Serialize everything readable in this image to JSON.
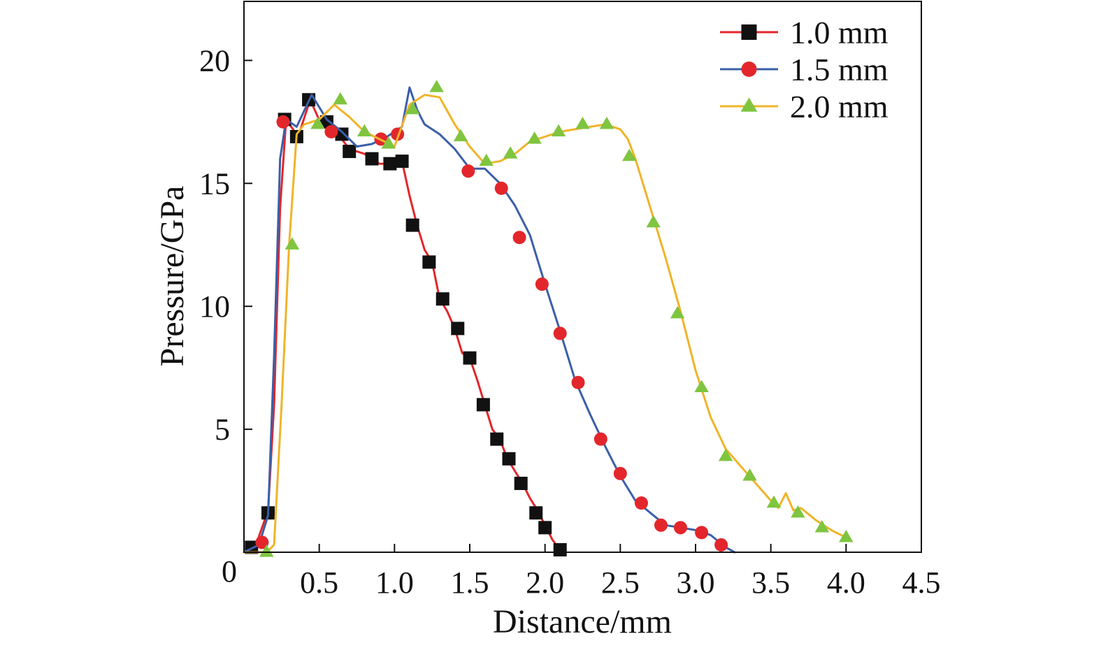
{
  "chart_data": {
    "type": "line",
    "xlabel": "Distance/mm",
    "ylabel": "Pressure/GPa",
    "xlim": [
      0,
      4.5
    ],
    "ylim": [
      0,
      22.4
    ],
    "xticks": [
      0.5,
      1.0,
      1.5,
      2.0,
      2.5,
      3.0,
      3.5,
      4.0,
      4.5
    ],
    "xtick_labels": [
      "0.5",
      "1.0",
      "1.5",
      "2.0",
      "2.5",
      "3.0",
      "3.5",
      "4.0",
      "4.5"
    ],
    "yticks": [
      0,
      5,
      10,
      15,
      20
    ],
    "ytick_labels": [
      "0",
      "5",
      "10",
      "15",
      "20"
    ],
    "grid": false,
    "legend_position": "top-right",
    "series": [
      {
        "name": "1.0 mm",
        "marker": "square",
        "marker_color": "#111111",
        "line_color": "#e3262b",
        "x": [
          0.0,
          0.08,
          0.16,
          0.2,
          0.24,
          0.28,
          0.36,
          0.44,
          0.52,
          0.6,
          0.7,
          0.8,
          0.9,
          1.0,
          1.05,
          1.1,
          1.15,
          1.2,
          1.25,
          1.3,
          1.35,
          1.4,
          1.45,
          1.5,
          1.55,
          1.6,
          1.65,
          1.7,
          1.75,
          1.8,
          1.85,
          1.9,
          1.95,
          2.0,
          2.05,
          2.1
        ],
        "y": [
          0.0,
          0.3,
          1.7,
          6.0,
          14.0,
          17.6,
          16.9,
          18.4,
          17.3,
          17.2,
          16.4,
          16.2,
          15.8,
          15.8,
          15.9,
          14.5,
          13.3,
          12.3,
          11.8,
          10.3,
          9.8,
          9.1,
          8.1,
          7.9,
          7.0,
          6.0,
          5.0,
          4.6,
          3.8,
          3.3,
          2.8,
          2.2,
          1.7,
          1.1,
          0.5,
          0.1
        ],
        "marker_x": [
          0.05,
          0.16,
          0.27,
          0.35,
          0.43,
          0.55,
          0.65,
          0.7,
          0.85,
          0.97,
          1.05,
          1.12,
          1.23,
          1.32,
          1.42,
          1.5,
          1.59,
          1.68,
          1.76,
          1.84,
          1.94,
          2.0,
          2.1
        ],
        "marker_y": [
          0.2,
          1.6,
          17.6,
          16.9,
          18.4,
          17.5,
          17.0,
          16.3,
          16.0,
          15.8,
          15.9,
          13.3,
          11.8,
          10.3,
          9.1,
          7.9,
          6.0,
          4.6,
          3.8,
          2.8,
          1.6,
          1.0,
          0.1
        ]
      },
      {
        "name": "1.5 mm",
        "marker": "circle",
        "marker_color": "#e3262b",
        "line_color": "#3b5fa8",
        "x": [
          0.0,
          0.1,
          0.16,
          0.2,
          0.24,
          0.28,
          0.35,
          0.45,
          0.55,
          0.65,
          0.75,
          0.85,
          0.95,
          1.05,
          1.1,
          1.15,
          1.2,
          1.3,
          1.4,
          1.5,
          1.6,
          1.7,
          1.8,
          1.9,
          2.0,
          2.1,
          2.2,
          2.3,
          2.4,
          2.5,
          2.6,
          2.7,
          2.8,
          2.9,
          3.0,
          3.1,
          3.2,
          3.26
        ],
        "y": [
          0.0,
          0.3,
          1.5,
          8.0,
          16.0,
          17.6,
          17.3,
          18.6,
          17.6,
          17.1,
          16.5,
          16.6,
          16.9,
          17.3,
          18.9,
          18.0,
          17.4,
          17.0,
          16.4,
          15.6,
          15.6,
          15.0,
          14.1,
          12.9,
          10.9,
          9.0,
          7.0,
          5.6,
          4.3,
          3.1,
          2.1,
          1.6,
          1.1,
          1.0,
          0.9,
          0.7,
          0.2,
          0.0
        ],
        "marker_x": [
          0.12,
          0.26,
          0.58,
          0.91,
          1.02,
          1.49,
          1.71,
          1.83,
          1.98,
          2.1,
          2.22,
          2.37,
          2.5,
          2.64,
          2.77,
          2.9,
          3.04,
          3.17
        ],
        "marker_y": [
          0.4,
          17.5,
          17.1,
          16.8,
          17.0,
          15.5,
          14.8,
          12.8,
          10.9,
          8.9,
          6.9,
          4.6,
          3.2,
          2.0,
          1.1,
          1.0,
          0.8,
          0.3
        ]
      },
      {
        "name": "2.0 mm",
        "marker": "triangle",
        "marker_color": "#7fc540",
        "line_color": "#f0b428",
        "x": [
          0.0,
          0.15,
          0.2,
          0.25,
          0.3,
          0.35,
          0.4,
          0.5,
          0.6,
          0.7,
          0.8,
          0.9,
          1.0,
          1.1,
          1.2,
          1.3,
          1.4,
          1.5,
          1.6,
          1.7,
          1.8,
          1.9,
          2.0,
          2.1,
          2.2,
          2.3,
          2.4,
          2.5,
          2.55,
          2.6,
          2.7,
          2.8,
          2.9,
          3.0,
          3.1,
          3.2,
          3.3,
          3.4,
          3.5,
          3.55,
          3.6,
          3.65,
          3.7,
          3.8,
          3.9,
          4.0
        ],
        "y": [
          0.0,
          0.0,
          0.3,
          6.0,
          12.5,
          17.0,
          17.4,
          17.6,
          18.2,
          17.7,
          17.1,
          16.8,
          16.5,
          18.2,
          18.6,
          18.5,
          17.4,
          16.5,
          15.8,
          15.9,
          16.2,
          16.7,
          16.9,
          17.1,
          17.2,
          17.3,
          17.4,
          17.2,
          16.8,
          16.0,
          14.0,
          12.0,
          9.8,
          7.4,
          5.5,
          4.2,
          3.5,
          2.8,
          2.1,
          1.8,
          2.4,
          1.7,
          1.8,
          1.3,
          0.9,
          0.6
        ],
        "marker_x": [
          0.15,
          0.32,
          0.49,
          0.64,
          0.8,
          0.96,
          1.12,
          1.28,
          1.44,
          1.61,
          1.77,
          1.93,
          2.09,
          2.25,
          2.41,
          2.56,
          2.72,
          2.88,
          3.04,
          3.2,
          3.36,
          3.52,
          3.68,
          3.84,
          4.0
        ],
        "marker_y": [
          0.0,
          12.5,
          17.4,
          18.4,
          17.1,
          16.6,
          18.0,
          18.9,
          16.9,
          15.9,
          16.2,
          16.8,
          17.1,
          17.4,
          17.4,
          16.1,
          13.4,
          9.7,
          6.7,
          3.9,
          3.1,
          2.0,
          1.6,
          1.0,
          0.6
        ]
      }
    ]
  }
}
